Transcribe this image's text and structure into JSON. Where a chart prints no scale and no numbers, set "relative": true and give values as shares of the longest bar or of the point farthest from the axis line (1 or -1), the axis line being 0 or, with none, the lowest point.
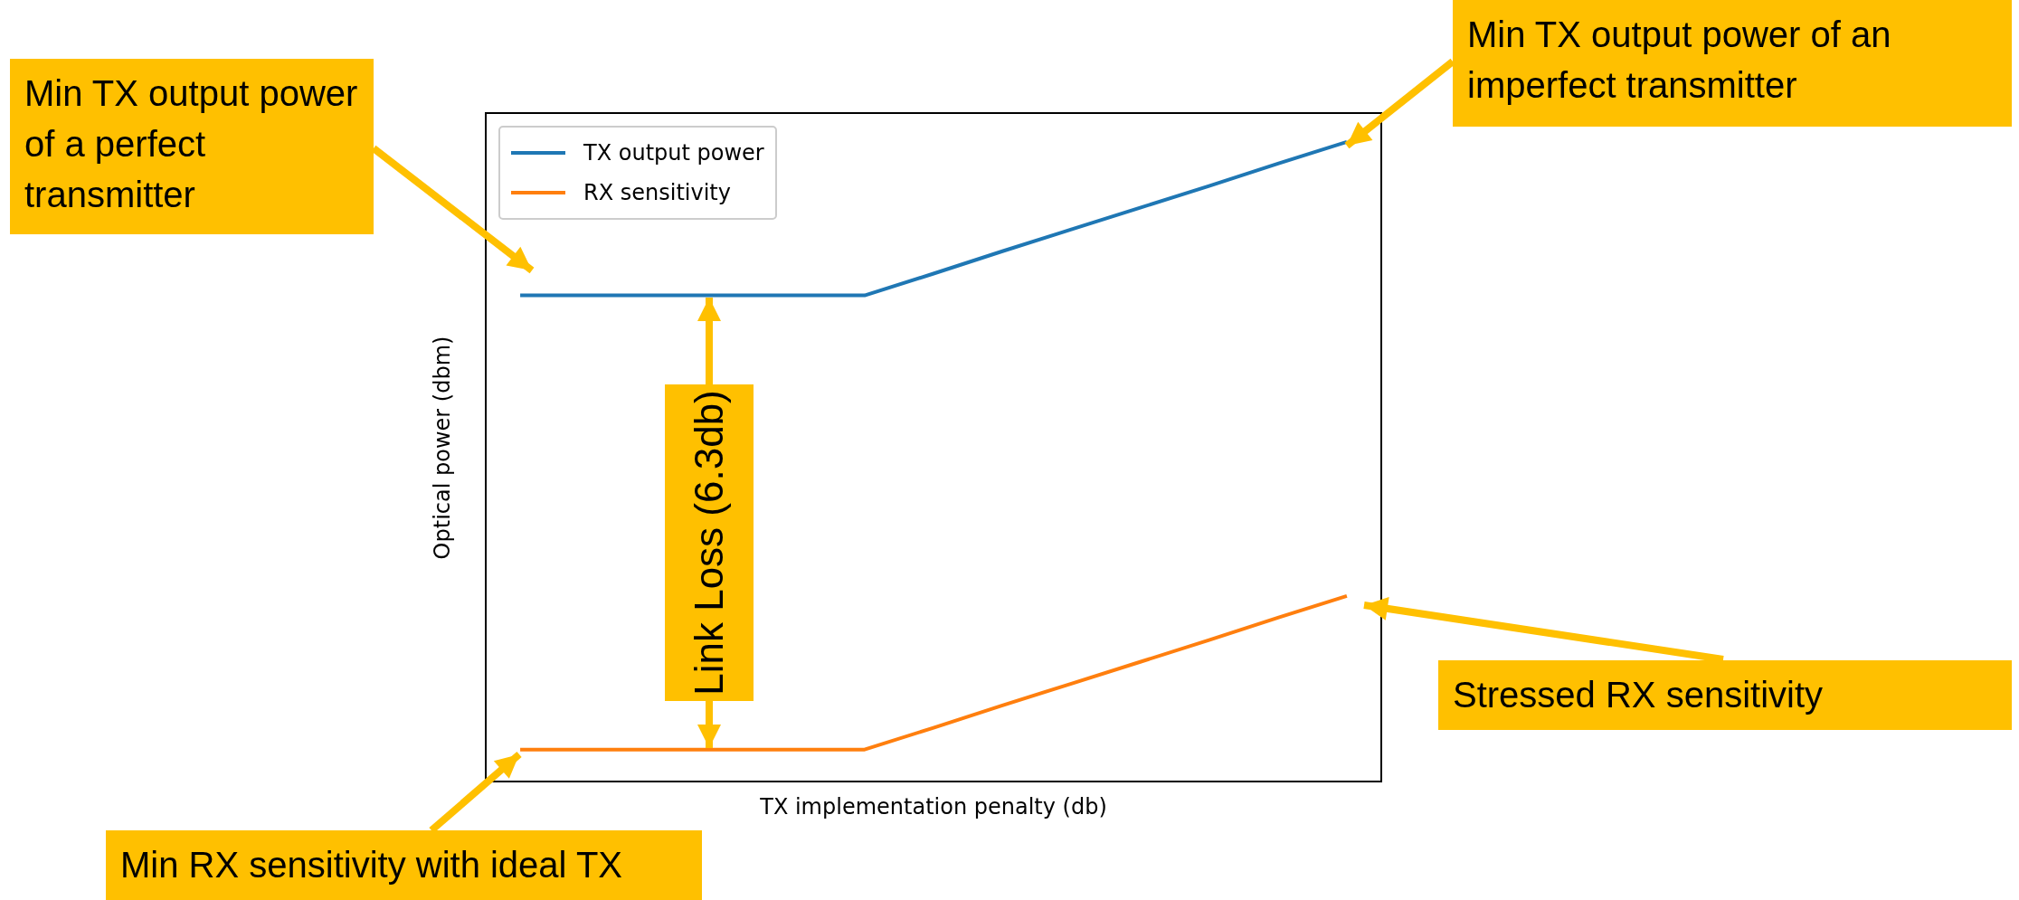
{
  "chart_data": {
    "type": "line",
    "relative": true,
    "xlabel": "TX implementation penalty (db)",
    "ylabel": "Optical power (dbm)",
    "legend": "top left",
    "marker": "none",
    "line_style": "solid",
    "categories": [
      null,
      null,
      null,
      null,
      null,
      null,
      null,
      null,
      null,
      null,
      null,
      null,
      null
    ],
    "series": [
      {
        "name": "TX output power",
        "color": "#1f77b4",
        "values": [
          0.76,
          0.76,
          0.76,
          0.76,
          0.76,
          0.76,
          0.794,
          0.829,
          0.863,
          0.897,
          0.931,
          0.966,
          1
        ]
      },
      {
        "name": "RX sensitivity",
        "color": "#ff7f0e",
        "values": [
          0.05,
          0.05,
          0.05,
          0.05,
          0.05,
          0.05,
          0.084,
          0.119,
          0.153,
          0.187,
          0.221,
          0.256,
          0.29
        ]
      }
    ],
    "annotations": [
      "Min TX output power of a perfect transmitter",
      "Min TX output power of an imperfect transmitter",
      "Link Loss (6.3db)",
      "Stressed RX sensitivity",
      "Min RX sensitivity with ideal TX"
    ]
  }
}
